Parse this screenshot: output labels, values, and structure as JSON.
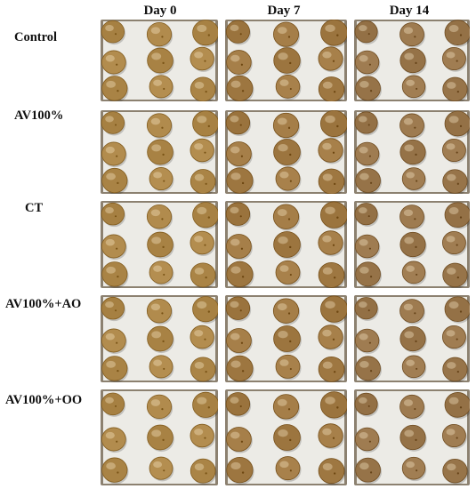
{
  "columns": [
    {
      "label": "Day 0"
    },
    {
      "label": "Day 7"
    },
    {
      "label": "Day 14"
    }
  ],
  "rows": [
    {
      "label": "Control"
    },
    {
      "label": "AV100%"
    },
    {
      "label": "CT"
    },
    {
      "label": "AV100%+AO"
    },
    {
      "label": "AV100%+OO"
    }
  ],
  "colors": {
    "tray": "#ecebe6",
    "tray_edge": "#8c8170",
    "fruit_day0": "#b08a4c",
    "fruit_day7": "#a47d47",
    "fruit_day14": "#9d7a4f"
  }
}
